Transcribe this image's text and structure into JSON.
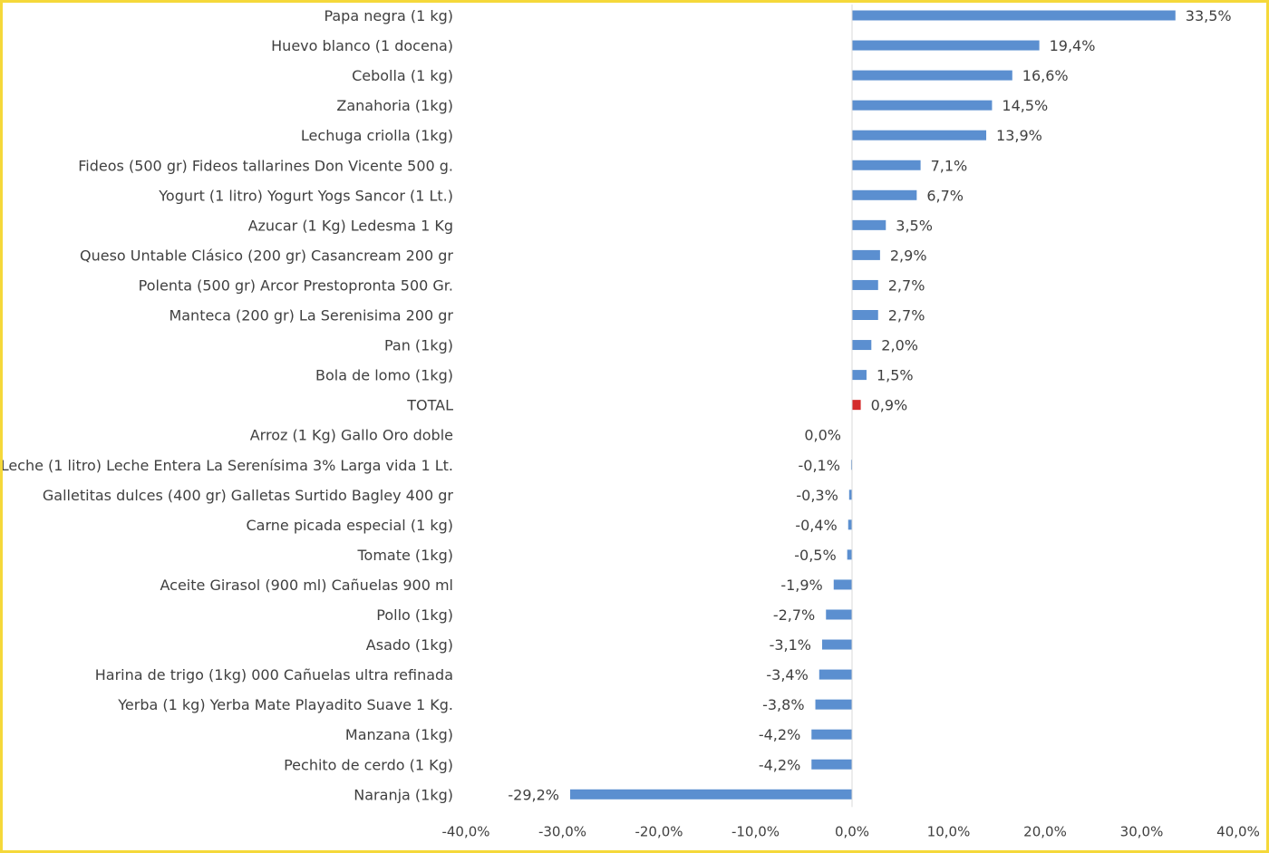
{
  "chart_data": {
    "type": "bar",
    "orientation": "horizontal",
    "categories": [
      "Papa negra (1 kg)",
      "Huevo blanco (1 docena)",
      "Cebolla (1 kg)",
      "Zanahoria (1kg)",
      "Lechuga criolla (1kg)",
      "Fideos (500 gr) Fideos tallarines Don Vicente 500 g.",
      "Yogurt (1 litro) Yogurt Yogs Sancor (1 Lt.)",
      "Azucar (1 Kg) Ledesma 1 Kg",
      "Queso Untable Clásico (200 gr) Casancream 200 gr",
      "Polenta (500 gr) Arcor Prestopronta 500 Gr.",
      "Manteca (200 gr) La Serenisima 200 gr",
      "Pan (1kg)",
      "Bola de lomo (1kg)",
      "TOTAL",
      "Arroz (1 Kg) Gallo Oro doble",
      "Leche (1 litro) Leche Entera La Serenísima 3% Larga vida 1 Lt.",
      "Galletitas dulces (400 gr) Galletas Surtido Bagley 400 gr",
      "Carne picada especial (1 kg)",
      "Tomate (1kg)",
      "Aceite Girasol (900 ml) Cañuelas 900 ml",
      "Pollo (1kg)",
      "Asado (1kg)",
      "Harina de trigo (1kg) 000 Cañuelas ultra refinada",
      "Yerba (1 kg) Yerba Mate Playadito Suave 1 Kg.",
      "Manzana (1kg)",
      "Pechito de cerdo (1 Kg)",
      "Naranja (1kg)"
    ],
    "values": [
      33.5,
      19.4,
      16.6,
      14.5,
      13.9,
      7.1,
      6.7,
      3.5,
      2.9,
      2.7,
      2.7,
      2.0,
      1.5,
      0.9,
      0.0,
      -0.1,
      -0.3,
      -0.4,
      -0.5,
      -1.9,
      -2.7,
      -3.1,
      -3.4,
      -3.8,
      -4.2,
      -4.2,
      -29.2
    ],
    "value_labels": [
      "33,5%",
      "19,4%",
      "16,6%",
      "14,5%",
      "13,9%",
      "7,1%",
      "6,7%",
      "3,5%",
      "2,9%",
      "2,7%",
      "2,7%",
      "2,0%",
      "1,5%",
      "0,9%",
      "0,0%",
      "-0,1%",
      "-0,3%",
      "-0,4%",
      "-0,5%",
      "-1,9%",
      "-2,7%",
      "-3,1%",
      "-3,4%",
      "-3,8%",
      "-4,2%",
      "-4,2%",
      "-29,2%"
    ],
    "highlight_category": "TOTAL",
    "xlim": [
      -40,
      40
    ],
    "x_ticks": [
      -40,
      -30,
      -20,
      -10,
      0,
      10,
      20,
      30,
      40
    ],
    "x_tick_labels": [
      "-40,0%",
      "-30,0%",
      "-20,0%",
      "-10,0%",
      "0,0%",
      "10,0%",
      "20,0%",
      "30,0%",
      "40,0%"
    ],
    "title": "",
    "xlabel": "",
    "ylabel": "",
    "grid": false,
    "legend": "none",
    "colors": {
      "bar": "#5b8fd0",
      "highlight": "#d42b2b",
      "text": "#404040",
      "axis": "#d9d9d9",
      "frame": "#f5d83a"
    }
  }
}
